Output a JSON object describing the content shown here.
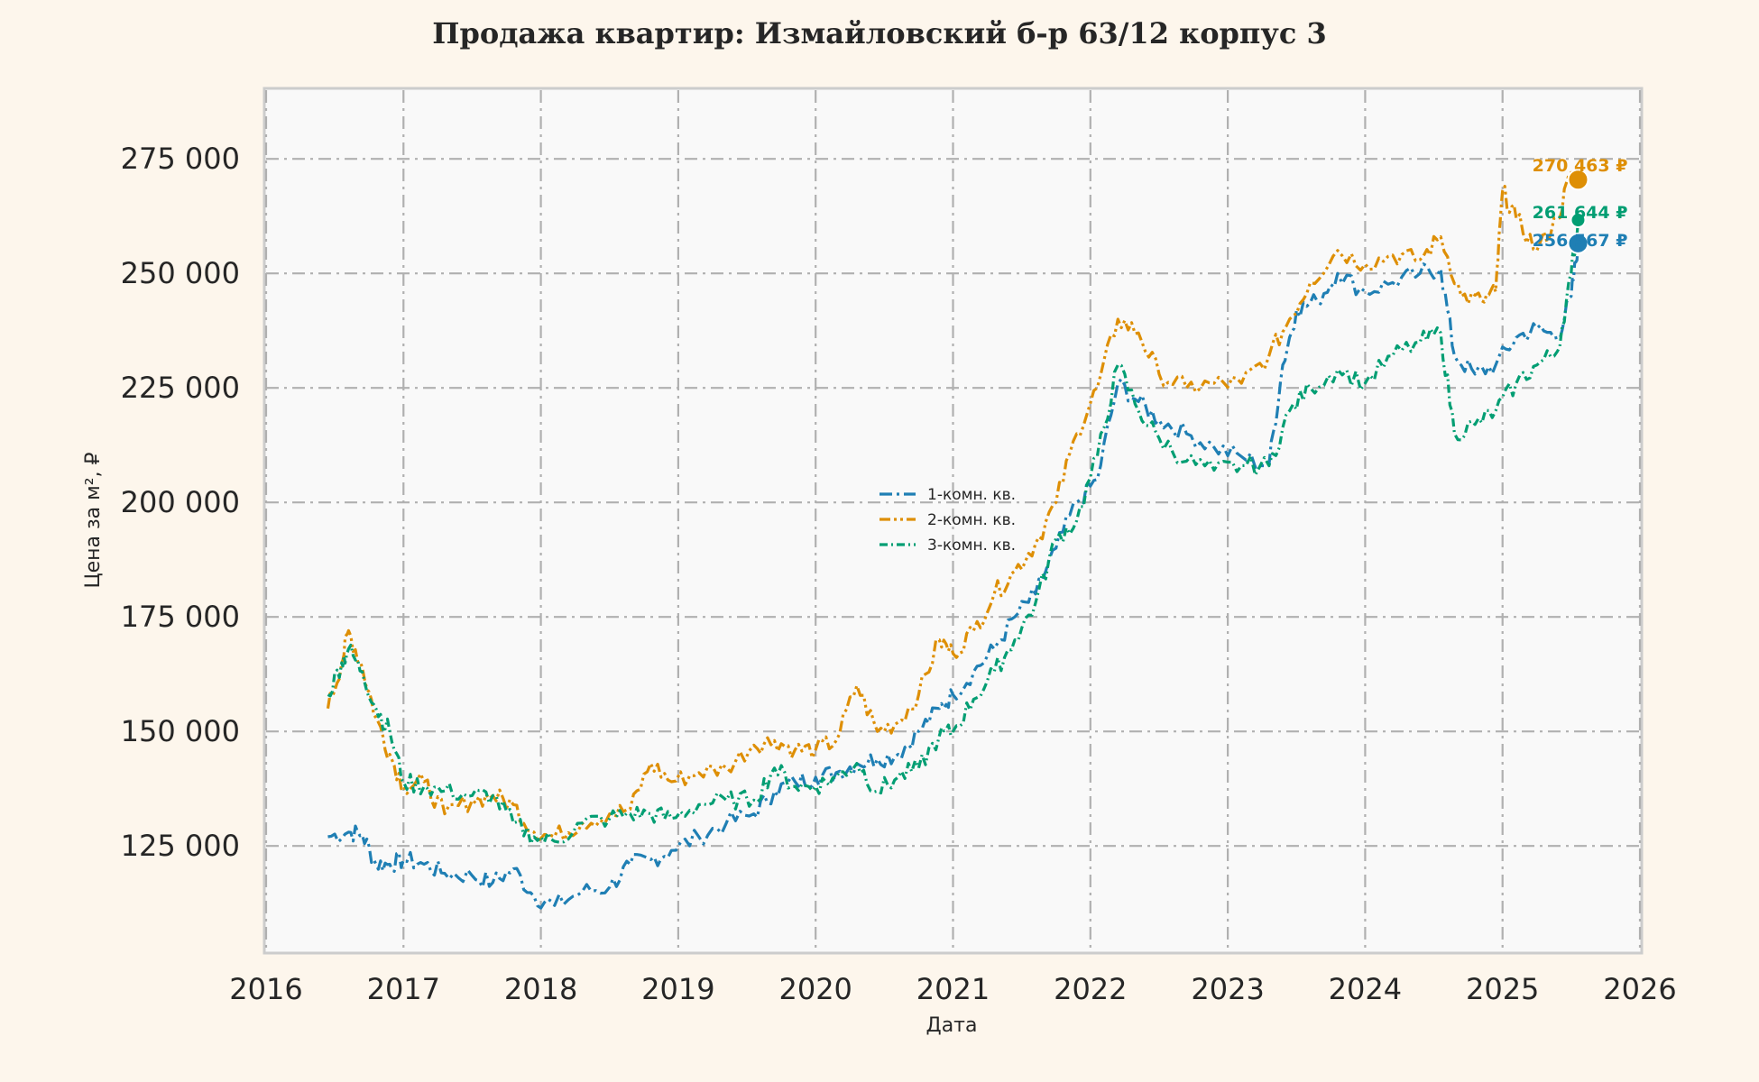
{
  "chart_data": {
    "type": "line",
    "title": "Продажа квартир: Измайловский б-р 63/12 корпус 3",
    "xlabel": "Дата",
    "ylabel": "Цена за м², ₽",
    "xlim": [
      2016,
      2026
    ],
    "ylim": [
      102000,
      290000
    ],
    "x_ticks": [
      "2016",
      "2017",
      "2018",
      "2019",
      "2020",
      "2021",
      "2022",
      "2023",
      "2024",
      "2025",
      "2026"
    ],
    "y_ticks": [
      "125 000",
      "150 000",
      "175 000",
      "200 000",
      "225 000",
      "250 000",
      "275 000"
    ],
    "grid": true,
    "legend_position": "center",
    "series": [
      {
        "name": "1-комн. кв.",
        "color": "#1f7fb4",
        "line_style": "dash-dot",
        "end_label": "256 567 ₽",
        "points": [
          [
            2016.45,
            127000
          ],
          [
            2016.6,
            128000
          ],
          [
            2016.7,
            127500
          ],
          [
            2016.8,
            121000
          ],
          [
            2016.9,
            121000
          ],
          [
            2017.0,
            122000
          ],
          [
            2017.15,
            121000
          ],
          [
            2017.3,
            119000
          ],
          [
            2017.5,
            118500
          ],
          [
            2017.65,
            117000
          ],
          [
            2017.8,
            120000
          ],
          [
            2017.95,
            114000
          ],
          [
            2018.1,
            112000
          ],
          [
            2018.3,
            115000
          ],
          [
            2018.5,
            116000
          ],
          [
            2018.65,
            121000
          ],
          [
            2018.8,
            122000
          ],
          [
            2018.95,
            124000
          ],
          [
            2019.15,
            127000
          ],
          [
            2019.35,
            130000
          ],
          [
            2019.55,
            132000
          ],
          [
            2019.7,
            137000
          ],
          [
            2019.85,
            139000
          ],
          [
            2020.0,
            140000
          ],
          [
            2020.15,
            141000
          ],
          [
            2020.3,
            143000
          ],
          [
            2020.45,
            144000
          ],
          [
            2020.6,
            145000
          ],
          [
            2020.75,
            150000
          ],
          [
            2020.9,
            155000
          ],
          [
            2021.0,
            158000
          ],
          [
            2021.15,
            163000
          ],
          [
            2021.3,
            168000
          ],
          [
            2021.45,
            175000
          ],
          [
            2021.6,
            180000
          ],
          [
            2021.75,
            190000
          ],
          [
            2021.9,
            200000
          ],
          [
            2022.05,
            205000
          ],
          [
            2022.2,
            226000
          ],
          [
            2022.35,
            222000
          ],
          [
            2022.5,
            218000
          ],
          [
            2022.7,
            215000
          ],
          [
            2022.9,
            212000
          ],
          [
            2023.1,
            210000
          ],
          [
            2023.3,
            208000
          ],
          [
            2023.4,
            230000
          ],
          [
            2023.5,
            242000
          ],
          [
            2023.65,
            244000
          ],
          [
            2023.8,
            250000
          ],
          [
            2024.0,
            246000
          ],
          [
            2024.2,
            248000
          ],
          [
            2024.4,
            250000
          ],
          [
            2024.55,
            251000
          ],
          [
            2024.65,
            232000
          ],
          [
            2024.8,
            228000
          ],
          [
            2024.95,
            230000
          ],
          [
            2025.1,
            236000
          ],
          [
            2025.25,
            238000
          ],
          [
            2025.4,
            236000
          ],
          [
            2025.5,
            245000
          ],
          [
            2025.55,
            256567
          ]
        ]
      },
      {
        "name": "2-комн. кв.",
        "color": "#de8f05",
        "line_style": "dash-dot-dot",
        "end_label": "270 463 ₽",
        "points": [
          [
            2016.45,
            155000
          ],
          [
            2016.55,
            165000
          ],
          [
            2016.6,
            172000
          ],
          [
            2016.7,
            164000
          ],
          [
            2016.8,
            153000
          ],
          [
            2016.9,
            145000
          ],
          [
            2017.0,
            138000
          ],
          [
            2017.15,
            139000
          ],
          [
            2017.3,
            132000
          ],
          [
            2017.5,
            135000
          ],
          [
            2017.65,
            136000
          ],
          [
            2017.8,
            134000
          ],
          [
            2017.95,
            128000
          ],
          [
            2018.1,
            127000
          ],
          [
            2018.3,
            130000
          ],
          [
            2018.5,
            132000
          ],
          [
            2018.65,
            133000
          ],
          [
            2018.8,
            143000
          ],
          [
            2018.95,
            139000
          ],
          [
            2019.15,
            141000
          ],
          [
            2019.35,
            142000
          ],
          [
            2019.55,
            147000
          ],
          [
            2019.7,
            148000
          ],
          [
            2019.85,
            146000
          ],
          [
            2020.0,
            146000
          ],
          [
            2020.15,
            148000
          ],
          [
            2020.3,
            160000
          ],
          [
            2020.45,
            150000
          ],
          [
            2020.6,
            152000
          ],
          [
            2020.75,
            158000
          ],
          [
            2020.9,
            170000
          ],
          [
            2021.0,
            167000
          ],
          [
            2021.15,
            172000
          ],
          [
            2021.3,
            180000
          ],
          [
            2021.45,
            185000
          ],
          [
            2021.6,
            191000
          ],
          [
            2021.75,
            200000
          ],
          [
            2021.9,
            215000
          ],
          [
            2022.05,
            225000
          ],
          [
            2022.2,
            240000
          ],
          [
            2022.35,
            237000
          ],
          [
            2022.5,
            228000
          ],
          [
            2022.7,
            225000
          ],
          [
            2022.9,
            226000
          ],
          [
            2023.1,
            226000
          ],
          [
            2023.3,
            232000
          ],
          [
            2023.45,
            240000
          ],
          [
            2023.6,
            248000
          ],
          [
            2023.8,
            255000
          ],
          [
            2024.0,
            252000
          ],
          [
            2024.2,
            254000
          ],
          [
            2024.4,
            253000
          ],
          [
            2024.55,
            258000
          ],
          [
            2024.7,
            245000
          ],
          [
            2024.85,
            244000
          ],
          [
            2024.95,
            246000
          ],
          [
            2025.0,
            268000
          ],
          [
            2025.1,
            262000
          ],
          [
            2025.25,
            255000
          ],
          [
            2025.4,
            262000
          ],
          [
            2025.5,
            272000
          ],
          [
            2025.55,
            270463
          ]
        ]
      },
      {
        "name": "3-комн. кв.",
        "color": "#029e73",
        "line_style": "dashed-dots",
        "end_label": "261 644 ₽",
        "points": [
          [
            2016.45,
            158000
          ],
          [
            2016.55,
            165000
          ],
          [
            2016.6,
            168000
          ],
          [
            2016.7,
            163000
          ],
          [
            2016.8,
            155000
          ],
          [
            2016.9,
            150000
          ],
          [
            2017.0,
            139000
          ],
          [
            2017.15,
            138000
          ],
          [
            2017.3,
            137000
          ],
          [
            2017.5,
            136000
          ],
          [
            2017.65,
            136000
          ],
          [
            2017.8,
            130000
          ],
          [
            2017.95,
            127000
          ],
          [
            2018.1,
            126000
          ],
          [
            2018.3,
            130000
          ],
          [
            2018.5,
            131000
          ],
          [
            2018.65,
            132000
          ],
          [
            2018.8,
            132000
          ],
          [
            2018.95,
            131000
          ],
          [
            2019.15,
            134000
          ],
          [
            2019.35,
            135000
          ],
          [
            2019.55,
            135000
          ],
          [
            2019.7,
            142000
          ],
          [
            2019.85,
            138000
          ],
          [
            2020.0,
            138000
          ],
          [
            2020.15,
            140000
          ],
          [
            2020.3,
            143000
          ],
          [
            2020.45,
            137000
          ],
          [
            2020.6,
            140000
          ],
          [
            2020.75,
            142000
          ],
          [
            2020.9,
            149000
          ],
          [
            2021.0,
            150000
          ],
          [
            2021.15,
            157000
          ],
          [
            2021.3,
            163000
          ],
          [
            2021.45,
            170000
          ],
          [
            2021.6,
            178000
          ],
          [
            2021.75,
            192000
          ],
          [
            2021.9,
            196000
          ],
          [
            2022.05,
            210000
          ],
          [
            2022.2,
            230000
          ],
          [
            2022.35,
            220000
          ],
          [
            2022.5,
            214000
          ],
          [
            2022.7,
            209000
          ],
          [
            2022.9,
            207000
          ],
          [
            2023.1,
            208000
          ],
          [
            2023.3,
            208000
          ],
          [
            2023.45,
            220000
          ],
          [
            2023.6,
            225000
          ],
          [
            2023.8,
            229000
          ],
          [
            2024.0,
            226000
          ],
          [
            2024.2,
            232000
          ],
          [
            2024.4,
            235000
          ],
          [
            2024.55,
            237000
          ],
          [
            2024.65,
            215000
          ],
          [
            2024.8,
            217000
          ],
          [
            2024.95,
            220000
          ],
          [
            2025.1,
            226000
          ],
          [
            2025.25,
            230000
          ],
          [
            2025.4,
            233000
          ],
          [
            2025.5,
            250000
          ],
          [
            2025.55,
            261644
          ]
        ]
      }
    ]
  }
}
